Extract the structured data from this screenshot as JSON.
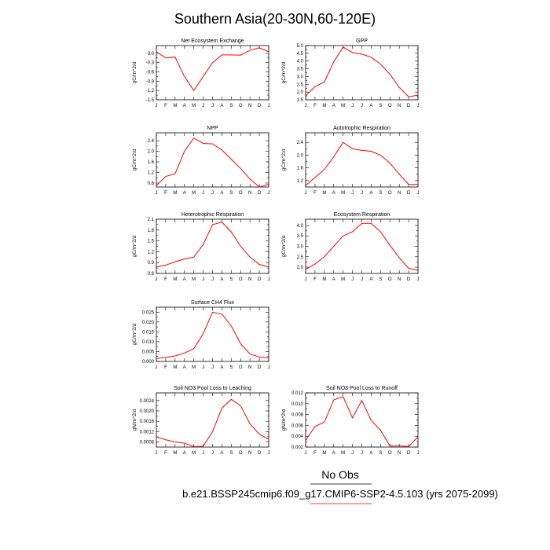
{
  "figure": {
    "title": "Southern Asia(20-30N,60-120E)",
    "obs_label": "No Obs",
    "case_label": "b.e21.BSSP245cmip6.f09_g17.CMIP6-SSP2-4.5.103 (yrs 2075-2099)",
    "line_color": "#ff0000",
    "case_underline_color": "#ff0000"
  },
  "chart_data": [
    {
      "type": "line",
      "title": "Net Ecosystem Exchange",
      "ylabel": "gC/m^2/d",
      "x": [
        "J",
        "F",
        "M",
        "A",
        "M",
        "J",
        "J",
        "A",
        "S",
        "O",
        "N",
        "D",
        "J"
      ],
      "values": [
        0.05,
        -0.15,
        -0.12,
        -0.75,
        -1.2,
        -0.75,
        -0.3,
        -0.05,
        -0.05,
        -0.06,
        0.1,
        0.18,
        0.05
      ],
      "ylim": [
        -1.5,
        0.25
      ],
      "yticks": [
        -1.5,
        -1.2,
        -0.9,
        -0.6,
        -0.3,
        0.0
      ],
      "ytick_labels": [
        "-1.5",
        "-1.2",
        "-0.9",
        "-0.6",
        "-0.3",
        "0.0"
      ]
    },
    {
      "type": "line",
      "title": "GPP",
      "ylabel": "gC/m^2/d",
      "x": [
        "J",
        "F",
        "M",
        "A",
        "M",
        "J",
        "J",
        "A",
        "S",
        "O",
        "N",
        "D",
        "J"
      ],
      "values": [
        1.75,
        2.35,
        2.65,
        3.95,
        4.9,
        4.55,
        4.45,
        4.25,
        3.8,
        3.15,
        2.3,
        1.7,
        1.8
      ],
      "ylim": [
        1.5,
        5.0
      ],
      "yticks": [
        1.5,
        2.0,
        2.5,
        3.0,
        3.5,
        4.0,
        4.5,
        5.0
      ],
      "ytick_labels": [
        "1.5",
        "2.0",
        "2.5",
        "3.0",
        "3.5",
        "4.0",
        "4.5",
        "5.0"
      ]
    },
    {
      "type": "line",
      "title": "NPP",
      "ylabel": "gC/m^2/d",
      "x": [
        "J",
        "F",
        "M",
        "A",
        "M",
        "J",
        "J",
        "A",
        "S",
        "O",
        "N",
        "D",
        "J"
      ],
      "values": [
        0.7,
        1.05,
        1.15,
        2.0,
        2.5,
        2.3,
        2.28,
        2.05,
        1.7,
        1.35,
        0.95,
        0.65,
        0.75
      ],
      "ylim": [
        0.65,
        2.7
      ],
      "yticks": [
        0.8,
        1.2,
        1.6,
        2.0,
        2.4
      ],
      "ytick_labels": [
        "0.8",
        "1.2",
        "1.6",
        "2.0",
        "2.4"
      ]
    },
    {
      "type": "line",
      "title": "Autotrophic Respiration",
      "ylabel": "gC/m^2/d",
      "x": [
        "J",
        "F",
        "M",
        "A",
        "M",
        "J",
        "J",
        "A",
        "S",
        "O",
        "N",
        "D",
        "J"
      ],
      "values": [
        1.05,
        1.3,
        1.55,
        1.95,
        2.4,
        2.2,
        2.15,
        2.12,
        2.0,
        1.75,
        1.4,
        1.08,
        1.08
      ],
      "ylim": [
        1.0,
        2.7
      ],
      "yticks": [
        1.2,
        1.6,
        2.0,
        2.4
      ],
      "ytick_labels": [
        "1.2",
        "1.6",
        "2.0",
        "2.4"
      ]
    },
    {
      "type": "line",
      "title": "Heterotrophic Respiration",
      "ylabel": "gC/m^2/d",
      "x": [
        "J",
        "F",
        "M",
        "A",
        "M",
        "J",
        "J",
        "A",
        "S",
        "O",
        "N",
        "D",
        "J"
      ],
      "values": [
        0.78,
        0.83,
        0.92,
        1.0,
        1.05,
        1.4,
        1.95,
        2.02,
        1.75,
        1.35,
        1.05,
        0.85,
        0.78
      ],
      "ylim": [
        0.6,
        2.1
      ],
      "yticks": [
        0.6,
        0.9,
        1.2,
        1.5,
        1.8,
        2.1
      ],
      "ytick_labels": [
        "0.6",
        "0.9",
        "1.2",
        "1.5",
        "1.8",
        "2.1"
      ]
    },
    {
      "type": "line",
      "title": "Ecosystem Respiration",
      "ylabel": "gC/m^2/d",
      "x": [
        "J",
        "F",
        "M",
        "A",
        "M",
        "J",
        "J",
        "A",
        "S",
        "O",
        "N",
        "D",
        "J"
      ],
      "values": [
        1.9,
        2.15,
        2.5,
        3.0,
        3.5,
        3.7,
        4.1,
        4.1,
        3.7,
        3.05,
        2.45,
        1.95,
        1.85
      ],
      "ylim": [
        1.7,
        4.3
      ],
      "yticks": [
        2.0,
        2.5,
        3.0,
        3.5,
        4.0
      ],
      "ytick_labels": [
        "2.0",
        "2.5",
        "3.0",
        "3.5",
        "4.0"
      ]
    },
    {
      "type": "line",
      "title": "Surface CH4 Flux",
      "ylabel": "gC/m^2/d",
      "x": [
        "J",
        "F",
        "M",
        "A",
        "M",
        "J",
        "J",
        "A",
        "S",
        "O",
        "N",
        "D",
        "J"
      ],
      "values": [
        0.0015,
        0.002,
        0.0028,
        0.0042,
        0.0065,
        0.014,
        0.025,
        0.024,
        0.018,
        0.009,
        0.0038,
        0.0022,
        0.0018
      ],
      "ylim": [
        0.0,
        0.0275
      ],
      "yticks": [
        0.0,
        0.005,
        0.01,
        0.015,
        0.02,
        0.025
      ],
      "ytick_labels": [
        "0.000",
        "0.005",
        "0.010",
        "0.015",
        "0.020",
        "0.025"
      ]
    },
    {
      "type": "line",
      "title": "Soil NO3 Pool Loss to Leaching",
      "ylabel": "gN/m^2/d",
      "x": [
        "J",
        "F",
        "M",
        "A",
        "M",
        "J",
        "J",
        "A",
        "S",
        "O",
        "N",
        "D",
        "J"
      ],
      "values": [
        0.001,
        0.00088,
        0.0008,
        0.00075,
        0.00062,
        0.00063,
        0.0012,
        0.0021,
        0.00245,
        0.0022,
        0.0015,
        0.0011,
        0.0009
      ],
      "ylim": [
        0.0006,
        0.0027
      ],
      "yticks": [
        0.0008,
        0.0012,
        0.0016,
        0.002,
        0.0024
      ],
      "ytick_labels": [
        "0.0008",
        "0.0012",
        "0.0016",
        "0.0020",
        "0.0024"
      ]
    },
    {
      "type": "line",
      "title": "Soil NO3 Pool Loss to Runoff",
      "ylabel": "gN/m^2/d",
      "x": [
        "J",
        "F",
        "M",
        "A",
        "M",
        "J",
        "J",
        "A",
        "S",
        "O",
        "N",
        "D",
        "J"
      ],
      "values": [
        0.0032,
        0.0058,
        0.0066,
        0.0107,
        0.0113,
        0.0074,
        0.0106,
        0.0069,
        0.0051,
        0.0022,
        0.0022,
        0.0021,
        0.0039
      ],
      "ylim": [
        0.002,
        0.012
      ],
      "yticks": [
        0.002,
        0.004,
        0.006,
        0.008,
        0.01,
        0.012
      ],
      "ytick_labels": [
        "0.002",
        "0.004",
        "0.006",
        "0.008",
        "0.010",
        "0.012"
      ]
    }
  ]
}
